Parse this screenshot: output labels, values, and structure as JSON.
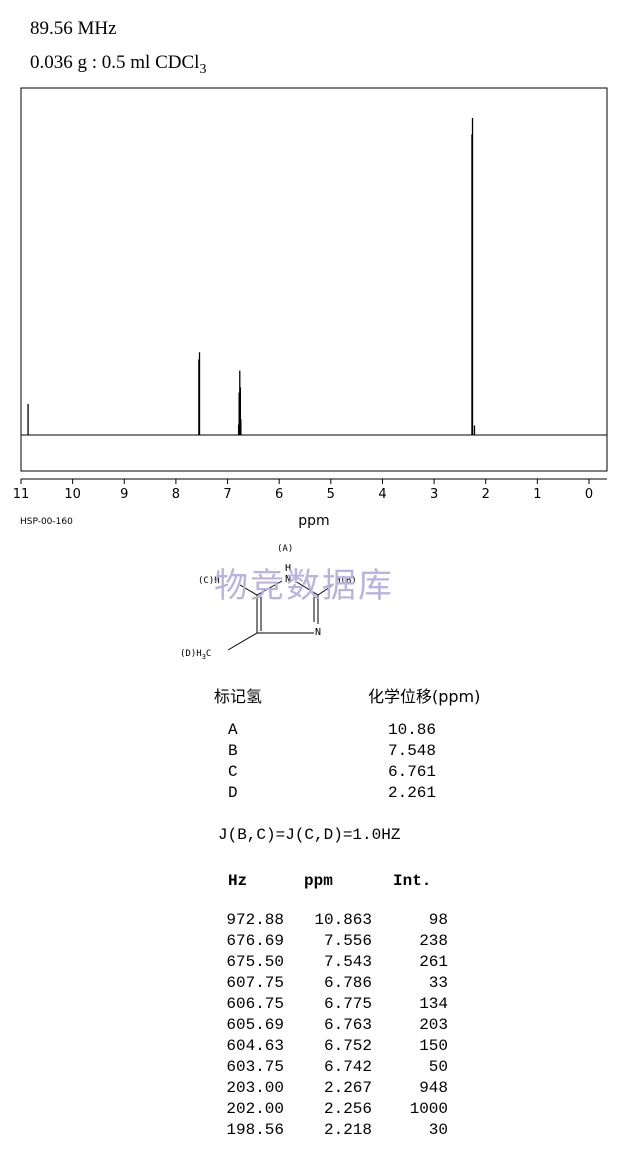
{
  "header": {
    "frequency": "89.56 MHz",
    "sample": "0.036 g : 0.5 ml CDCl",
    "sample_subscript": "3"
  },
  "chart_data": {
    "type": "line",
    "xlabel": "ppm",
    "xlim": [
      11,
      0
    ],
    "x_reversed": true,
    "ylim": [
      0,
      1000
    ],
    "grid": false,
    "x_ticks": [
      "11",
      "10",
      "9",
      "8",
      "7",
      "6",
      "5",
      "4",
      "3",
      "2",
      "1",
      "0"
    ],
    "series": [
      {
        "peaks": [
          {
            "ppm": 10.863,
            "intensity": 98
          },
          {
            "ppm": 7.556,
            "intensity": 238
          },
          {
            "ppm": 7.543,
            "intensity": 261
          },
          {
            "ppm": 6.786,
            "intensity": 33
          },
          {
            "ppm": 6.775,
            "intensity": 134
          },
          {
            "ppm": 6.763,
            "intensity": 203
          },
          {
            "ppm": 6.752,
            "intensity": 150
          },
          {
            "ppm": 6.742,
            "intensity": 50
          },
          {
            "ppm": 2.267,
            "intensity": 948
          },
          {
            "ppm": 2.256,
            "intensity": 1000
          },
          {
            "ppm": 2.218,
            "intensity": 30
          }
        ]
      }
    ]
  },
  "spectrum_code": "HSP-00-160",
  "structure": {
    "label_a": "(A)",
    "nh_h": "H",
    "nh_n": "N",
    "ring_n": "N",
    "label_c": "(C)H",
    "label_b": "H(B)",
    "label_d": "(D)H",
    "d_sub": "3",
    "d_c": "C"
  },
  "watermark": "物竞数据库",
  "assignment": {
    "header_label": "标记氢",
    "header_shift": "化学位移(ppm)",
    "rows": [
      {
        "label": "A",
        "shift": "10.86"
      },
      {
        "label": "B",
        "shift": "7.548"
      },
      {
        "label": "C",
        "shift": "6.761"
      },
      {
        "label": "D",
        "shift": "2.261"
      }
    ]
  },
  "coupling": "J(B,C)=J(C,D)=1.0HZ",
  "peak_table": {
    "headers": {
      "hz": "Hz",
      "ppm": "ppm",
      "int": "Int."
    },
    "rows": [
      {
        "hz": "972.88",
        "ppm": "10.863",
        "int": "98"
      },
      {
        "hz": "676.69",
        "ppm": "7.556",
        "int": "238"
      },
      {
        "hz": "675.50",
        "ppm": "7.543",
        "int": "261"
      },
      {
        "hz": "607.75",
        "ppm": "6.786",
        "int": "33"
      },
      {
        "hz": "606.75",
        "ppm": "6.775",
        "int": "134"
      },
      {
        "hz": "605.69",
        "ppm": "6.763",
        "int": "203"
      },
      {
        "hz": "604.63",
        "ppm": "6.752",
        "int": "150"
      },
      {
        "hz": "603.75",
        "ppm": "6.742",
        "int": "50"
      },
      {
        "hz": "203.00",
        "ppm": "2.267",
        "int": "948"
      },
      {
        "hz": "202.00",
        "ppm": "2.256",
        "int": "1000"
      },
      {
        "hz": "198.56",
        "ppm": "2.218",
        "int": "30"
      }
    ]
  }
}
